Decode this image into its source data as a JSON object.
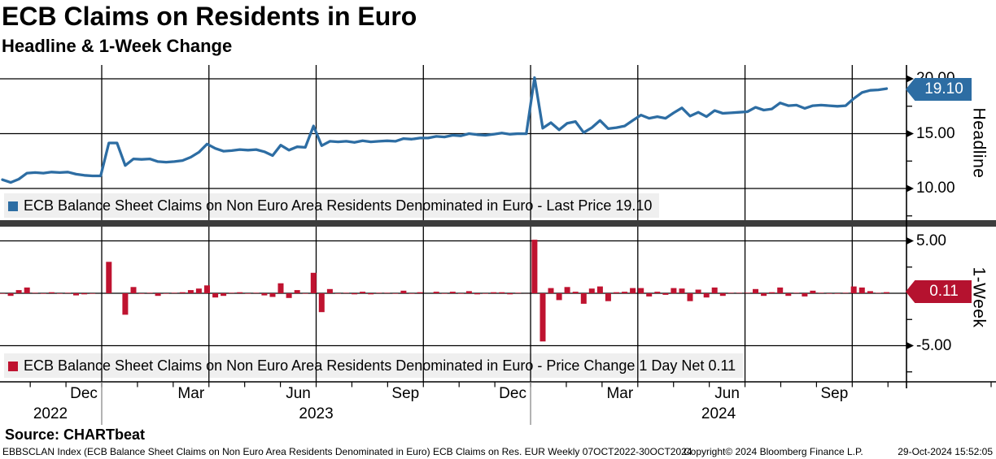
{
  "header": {
    "title": "ECB Claims on Residents in Euro",
    "subtitle": "Headline & 1-Week Change"
  },
  "colors": {
    "line_blue": "#2d6da3",
    "bar_red": "#bf1330",
    "tag_blue": "#2d6da3",
    "tag_red": "#b5122f",
    "legend_bg": "#efefef",
    "separator_band": "#3d3d3d",
    "grid": "#000000"
  },
  "panels": {
    "top": {
      "axis_label": "Headline",
      "tag": "19.10",
      "legend": "ECB Balance Sheet Claims on Non Euro Area Residents Denominated in Euro - Last Price 19.10",
      "yticks": [
        {
          "label": "20.00",
          "value": 20
        },
        {
          "label": "15.00",
          "value": 15
        },
        {
          "label": "10.00",
          "value": 10
        }
      ]
    },
    "bottom": {
      "axis_label": "1-Week",
      "tag": "0.11",
      "legend": "ECB Balance Sheet Claims on Non Euro Area Residents Denominated in Euro - Price Change 1 Day Net 0.11",
      "yticks": [
        {
          "label": "5.00",
          "value": 5
        },
        {
          "label": "-5.00",
          "value": -5
        }
      ]
    }
  },
  "x_axis": {
    "month_ticks": [
      {
        "label": "Dec",
        "m": -1
      },
      {
        "label": "Mar",
        "m": 2
      },
      {
        "label": "Jun",
        "m": 5
      },
      {
        "label": "Sep",
        "m": 8
      },
      {
        "label": "Dec",
        "m": 11
      },
      {
        "label": "Mar",
        "m": 14
      },
      {
        "label": "Jun",
        "m": 17
      },
      {
        "label": "Sep",
        "m": 20
      }
    ],
    "years": [
      "2022",
      "2023",
      "2024"
    ]
  },
  "footer": {
    "source": "Source: CHARTbeat",
    "description": "EBBSCLAN Index (ECB Balance Sheet Claims on Non Euro Area Residents Denominated in Euro) ECB Claims on Res. EUR  Weekly 07OCT2022-30OCT2024",
    "copyright": "Copyright© 2024 Bloomberg Finance L.P.",
    "timestamp": "29-Oct-2024 15:52:05"
  },
  "chart_data": [
    {
      "type": "line",
      "title": "Headline",
      "series_name": "ECB Balance Sheet Claims on Non Euro Area Residents Denominated in Euro",
      "metric": "Last Price",
      "last_price": 19.1,
      "frequency": "Weekly",
      "x_range": "07OCT2022-30OCT2024",
      "yticks": [
        10,
        15,
        20
      ],
      "ylim": [
        7.5,
        21.3
      ],
      "legend_position": "bottom-strip",
      "grid": true,
      "values": [
        10.8,
        10.55,
        10.85,
        11.4,
        11.45,
        11.4,
        11.5,
        11.45,
        11.5,
        11.3,
        11.2,
        11.15,
        11.15,
        14.15,
        14.15,
        12.1,
        12.7,
        12.65,
        12.7,
        12.45,
        12.4,
        12.45,
        12.55,
        12.85,
        13.3,
        14.05,
        13.65,
        13.4,
        13.45,
        13.55,
        13.5,
        13.55,
        13.35,
        13.0,
        13.95,
        13.5,
        13.8,
        13.75,
        15.7,
        13.9,
        14.3,
        14.25,
        14.3,
        14.2,
        14.35,
        14.25,
        14.3,
        14.35,
        14.3,
        14.55,
        14.5,
        14.6,
        14.6,
        14.75,
        14.7,
        14.85,
        14.8,
        15.0,
        14.9,
        14.85,
        14.95,
        15.05,
        14.95,
        15.0,
        14.99,
        20.1,
        15.5,
        16.0,
        15.35,
        15.95,
        16.1,
        15.1,
        15.55,
        16.2,
        15.45,
        15.55,
        15.7,
        16.2,
        16.7,
        16.4,
        16.55,
        16.4,
        16.9,
        17.35,
        16.6,
        16.95,
        16.55,
        17.1,
        16.85,
        16.9,
        16.95,
        17.0,
        17.4,
        17.15,
        17.25,
        17.8,
        17.55,
        17.6,
        17.3,
        17.55,
        17.6,
        17.55,
        17.5,
        17.55,
        18.2,
        18.75,
        18.95,
        18.99,
        19.1
      ]
    },
    {
      "type": "bar",
      "title": "1-Week",
      "series_name": "ECB Balance Sheet Claims on Non Euro Area Residents Denominated in Euro",
      "metric": "Price Change 1 Day Net",
      "last_value": 0.11,
      "yticks": [
        -5,
        5
      ],
      "ylim": [
        -7.9,
        6.3
      ],
      "grid": true,
      "values": [
        -0.05,
        -0.25,
        0.3,
        0.55,
        0.05,
        -0.05,
        0.1,
        -0.05,
        0.05,
        -0.2,
        -0.1,
        -0.05,
        0.0,
        3.0,
        0.0,
        -2.05,
        0.6,
        -0.05,
        0.05,
        -0.25,
        -0.05,
        0.05,
        0.1,
        0.3,
        0.45,
        0.75,
        -0.4,
        -0.25,
        0.05,
        0.1,
        -0.05,
        0.05,
        -0.2,
        -0.35,
        0.95,
        -0.45,
        0.3,
        -0.05,
        1.95,
        -1.8,
        0.4,
        -0.05,
        0.05,
        -0.1,
        0.15,
        -0.1,
        0.05,
        0.05,
        -0.05,
        0.25,
        -0.05,
        0.1,
        0.0,
        0.15,
        -0.05,
        0.15,
        -0.05,
        0.2,
        -0.1,
        -0.05,
        0.1,
        0.1,
        -0.1,
        0.05,
        -0.01,
        5.11,
        -4.6,
        0.5,
        -0.65,
        0.6,
        0.15,
        -1.0,
        0.45,
        0.65,
        -0.75,
        0.1,
        0.15,
        0.5,
        0.5,
        -0.3,
        0.15,
        -0.15,
        0.5,
        0.45,
        -0.75,
        0.35,
        -0.4,
        0.55,
        -0.25,
        0.05,
        0.05,
        0.05,
        0.4,
        -0.25,
        0.1,
        0.55,
        -0.25,
        0.05,
        -0.3,
        0.25,
        0.05,
        -0.05,
        -0.05,
        0.05,
        0.65,
        0.55,
        0.2,
        0.04,
        0.11
      ]
    }
  ]
}
